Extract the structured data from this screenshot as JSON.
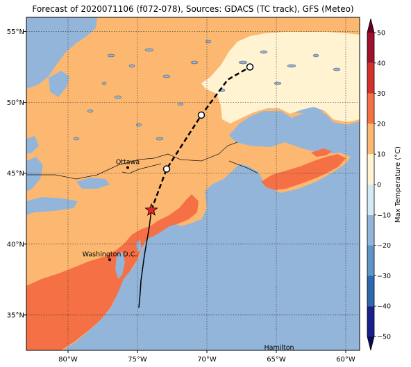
{
  "title": "Forecast of 2020071106 (f072-078), Sources: GDACS (TC track), GFS (Meteo)",
  "map": {
    "lon_range": [
      -83,
      -59
    ],
    "lat_range": [
      32.5,
      56
    ],
    "x_ticks": [
      {
        "lon": -80,
        "label": "80°W"
      },
      {
        "lon": -75,
        "label": "75°W"
      },
      {
        "lon": -70,
        "label": "70°W"
      },
      {
        "lon": -65,
        "label": "65°W"
      },
      {
        "lon": -60,
        "label": "60°W"
      }
    ],
    "y_ticks": [
      {
        "lat": 35,
        "label": "35°N"
      },
      {
        "lat": 40,
        "label": "40°N"
      },
      {
        "lat": 45,
        "label": "45°N"
      },
      {
        "lat": 50,
        "label": "50°N"
      },
      {
        "lat": 55,
        "label": "55°N"
      }
    ],
    "colors": {
      "water": "#93b5d9",
      "land_10_20": "#fcb871",
      "land_0_10": "#fff3d2",
      "land_20_30": "#f57145",
      "track": "#000000",
      "current_position": "#e8242b"
    },
    "cities": [
      {
        "name": "Ottawa",
        "lon": -75.7,
        "lat": 45.4
      },
      {
        "name": "Washington D.C.",
        "lon": -77.0,
        "lat": 38.9
      },
      {
        "name": "Hamilton",
        "lon": -64.8,
        "lat": 32.3
      }
    ],
    "track_past": [
      [
        -74.9,
        35.5
      ],
      [
        -74.8,
        36.6
      ],
      [
        -74.75,
        37.4
      ],
      [
        -74.5,
        39.2
      ],
      [
        -74.15,
        41.2
      ],
      [
        -74.0,
        42.4
      ]
    ],
    "track_forecast": [
      [
        -74.0,
        42.4
      ],
      [
        -72.9,
        45.3
      ],
      [
        -70.4,
        49.1
      ],
      [
        -68.5,
        51.6
      ],
      [
        -66.9,
        52.5
      ]
    ],
    "current_position": {
      "lon": -74.0,
      "lat": 42.4
    },
    "forecast_points": [
      {
        "lon": -72.9,
        "lat": 45.3
      },
      {
        "lon": -70.4,
        "lat": 49.1
      },
      {
        "lon": -66.9,
        "lat": 52.5
      }
    ]
  },
  "colorbar": {
    "label": "Max Temperature (°C)",
    "min": -50,
    "max": 50,
    "ticks": [
      -50,
      -40,
      -30,
      -20,
      -10,
      0,
      10,
      20,
      30,
      40,
      50
    ],
    "tick_labels": [
      "−50",
      "−40",
      "−30",
      "−20",
      "−10",
      "0",
      "10",
      "20",
      "30",
      "40",
      "50"
    ],
    "bins": [
      {
        "from": -50,
        "to": -40,
        "color": "#1a1f8a"
      },
      {
        "from": -40,
        "to": -30,
        "color": "#2e68ad"
      },
      {
        "from": -30,
        "to": -20,
        "color": "#5d95c7"
      },
      {
        "from": -20,
        "to": -10,
        "color": "#93b5d9"
      },
      {
        "from": -10,
        "to": 0,
        "color": "#d6eaf3"
      },
      {
        "from": 0,
        "to": 10,
        "color": "#fff3d2"
      },
      {
        "from": 10,
        "to": 20,
        "color": "#fcb871"
      },
      {
        "from": 20,
        "to": 30,
        "color": "#f57145"
      },
      {
        "from": 30,
        "to": 40,
        "color": "#d5302c"
      },
      {
        "from": 40,
        "to": 50,
        "color": "#a0102a"
      }
    ],
    "under_color": "#0b0b5e",
    "over_color": "#67001f"
  }
}
